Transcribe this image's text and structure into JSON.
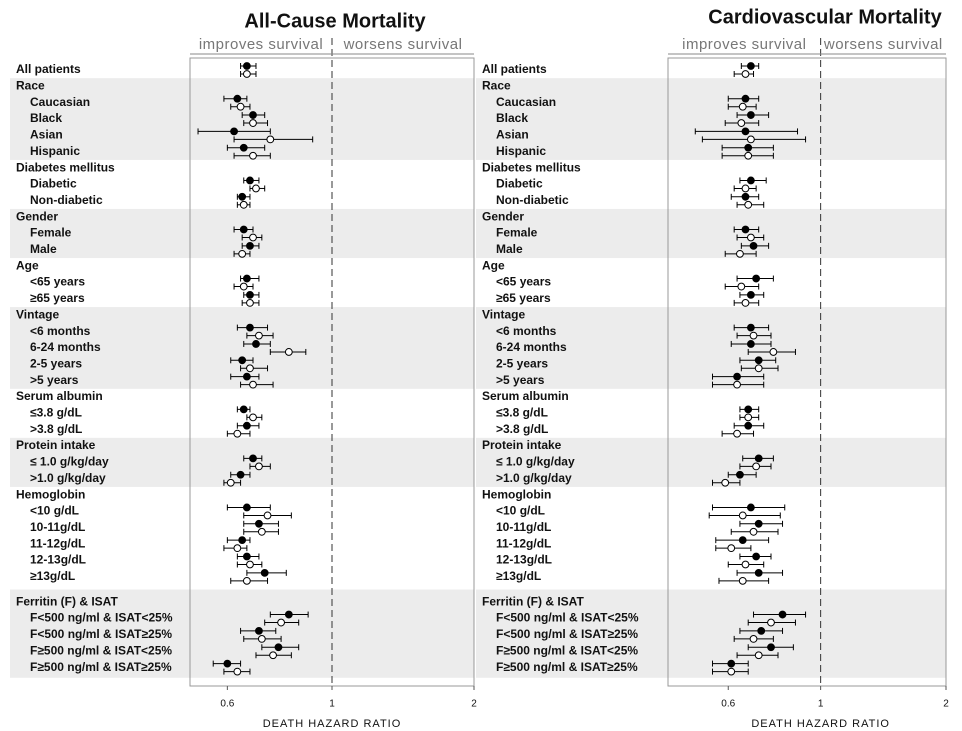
{
  "chart_data": [
    {
      "type": "forest",
      "title": "All-Cause Mortality",
      "annotations": [
        "improves survival",
        "worsens survival"
      ],
      "x_label": "DEATH HAZARD RATIO",
      "xscale": "log",
      "xlim": [
        0.5,
        2
      ],
      "xticks": [
        0.6,
        1,
        2
      ],
      "refline": 1,
      "categories": [
        "All patients",
        "Race",
        "Caucasian",
        "Black",
        "Asian",
        "Hispanic",
        "Diabetes mellitus",
        "Diabetic",
        "Non-diabetic",
        "Gender",
        "Female",
        "Male",
        "Age",
        "<65 years",
        "≥65 years",
        "Vintage",
        "<6 months",
        "6-24 months",
        "2-5 years",
        ">5 years",
        "Serum albumin",
        "≤3.8 g/dL",
        ">3.8 g/dL",
        "Protein intake",
        "≤ 1.0 g/kg/day",
        ">1.0 g/kg/day",
        "Hemoglobin",
        "<10 g/dL",
        "10-11g/dL",
        "11-12g/dL",
        "12-13g/dL",
        "≥13g/dL",
        "Ferritin (F) & ISAT",
        "F<500 ng/ml & ISAT<25%",
        "F<500 ng/ml & ISAT≥25%",
        "F≥500 ng/ml & ISAT<25%",
        "F≥500 ng/ml & ISAT≥25%"
      ],
      "series": [
        {
          "marker": "filled",
          "color": "#000000",
          "values": [
            0.66,
            null,
            0.63,
            0.68,
            0.62,
            0.65,
            null,
            0.67,
            0.645,
            null,
            0.65,
            0.67,
            null,
            0.66,
            0.67,
            null,
            0.67,
            0.69,
            0.645,
            0.66,
            null,
            0.65,
            0.66,
            null,
            0.68,
            0.64,
            null,
            0.66,
            0.7,
            0.645,
            0.66,
            0.72,
            null,
            0.81,
            0.7,
            0.77,
            0.6
          ],
          "lower": [
            0.64,
            null,
            0.59,
            0.645,
            0.52,
            0.6,
            null,
            0.65,
            0.63,
            null,
            0.62,
            0.645,
            null,
            0.64,
            0.65,
            null,
            0.63,
            0.65,
            0.61,
            0.61,
            null,
            0.63,
            0.63,
            null,
            0.65,
            0.61,
            null,
            0.6,
            0.65,
            0.6,
            0.63,
            0.66,
            null,
            0.74,
            0.64,
            0.71,
            0.56
          ],
          "upper": [
            0.69,
            null,
            0.66,
            0.72,
            0.74,
            0.72,
            null,
            0.7,
            0.67,
            null,
            0.68,
            0.7,
            null,
            0.7,
            0.7,
            null,
            0.73,
            0.74,
            0.68,
            0.7,
            null,
            0.67,
            0.7,
            null,
            0.71,
            0.67,
            null,
            0.74,
            0.77,
            0.67,
            0.7,
            0.8,
            null,
            0.89,
            0.76,
            0.85,
            0.64
          ]
        },
        {
          "marker": "open",
          "color": "#000000",
          "values": [
            0.66,
            null,
            0.64,
            0.68,
            0.74,
            0.68,
            null,
            0.69,
            0.65,
            null,
            0.68,
            0.645,
            null,
            0.65,
            0.67,
            null,
            0.7,
            0.81,
            0.67,
            0.68,
            null,
            0.68,
            0.63,
            null,
            0.7,
            0.61,
            null,
            0.73,
            0.71,
            0.63,
            0.67,
            0.66,
            null,
            0.78,
            0.71,
            0.75,
            0.63
          ],
          "lower": [
            0.64,
            null,
            0.61,
            0.65,
            0.62,
            0.62,
            null,
            0.67,
            0.63,
            null,
            0.645,
            0.62,
            null,
            0.62,
            0.645,
            null,
            0.66,
            0.74,
            0.64,
            0.64,
            null,
            0.66,
            0.6,
            null,
            0.67,
            0.59,
            null,
            0.65,
            0.65,
            0.59,
            0.63,
            0.61,
            null,
            0.72,
            0.65,
            0.69,
            0.59
          ],
          "upper": [
            0.69,
            null,
            0.67,
            0.73,
            0.91,
            0.74,
            null,
            0.72,
            0.67,
            null,
            0.71,
            0.67,
            null,
            0.68,
            0.7,
            null,
            0.75,
            0.88,
            0.73,
            0.75,
            null,
            0.71,
            0.67,
            null,
            0.74,
            0.64,
            null,
            0.82,
            0.77,
            0.66,
            0.71,
            0.73,
            null,
            0.85,
            0.78,
            0.82,
            0.67
          ]
        }
      ]
    },
    {
      "type": "forest",
      "title": "Cardiovascular Mortality",
      "annotations": [
        "improves survival",
        "worsens survival"
      ],
      "x_label": "DEATH HAZARD RATIO",
      "xscale": "log",
      "xlim": [
        0.43,
        2
      ],
      "xticks": [
        0.6,
        1,
        2
      ],
      "refline": 1,
      "categories": [
        "All patients",
        "Race",
        "Caucasian",
        "Black",
        "Asian",
        "Hispanic",
        "Diabetes mellitus",
        "Diabetic",
        "Non-diabetic",
        "Gender",
        "Female",
        "Male",
        "Age",
        "<65 years",
        "≥65 years",
        "Vintage",
        "<6 months",
        "6-24 months",
        "2-5 years",
        ">5 years",
        "Serum albumin",
        "≤3.8 g/dL",
        ">3.8 g/dL",
        "Protein intake",
        "≤ 1.0 g/kg/day",
        ">1.0 g/kg/day",
        "Hemoglobin",
        "<10 g/dL",
        "10-11g/dL",
        "11-12g/dL",
        "12-13g/dL",
        "≥13g/dL",
        "Ferritin (F) & ISAT",
        "F<500 ng/ml & ISAT<25%",
        "F<500 ng/ml & ISAT≥25%",
        "F≥500 ng/ml & ISAT<25%",
        "F≥500 ng/ml & ISAT≥25%"
      ],
      "series": [
        {
          "marker": "filled",
          "color": "#000000",
          "values": [
            0.68,
            null,
            0.66,
            0.68,
            0.66,
            0.67,
            null,
            0.68,
            0.66,
            null,
            0.66,
            0.69,
            null,
            0.7,
            0.68,
            null,
            0.68,
            0.68,
            0.71,
            0.63,
            null,
            0.67,
            0.67,
            null,
            0.71,
            0.64,
            null,
            0.68,
            0.71,
            0.65,
            0.7,
            0.71,
            null,
            0.81,
            0.72,
            0.76,
            0.61
          ],
          "lower": [
            0.645,
            null,
            0.6,
            0.63,
            0.5,
            0.58,
            null,
            0.64,
            0.61,
            null,
            0.62,
            0.645,
            null,
            0.63,
            0.64,
            null,
            0.62,
            0.61,
            0.64,
            0.55,
            null,
            0.64,
            0.62,
            null,
            0.65,
            0.6,
            null,
            0.55,
            0.64,
            0.56,
            0.64,
            0.63,
            null,
            0.69,
            0.64,
            0.67,
            0.55
          ],
          "upper": [
            0.71,
            null,
            0.71,
            0.75,
            0.88,
            0.77,
            null,
            0.74,
            0.71,
            null,
            0.71,
            0.75,
            null,
            0.77,
            0.73,
            null,
            0.75,
            0.76,
            0.78,
            0.73,
            null,
            0.71,
            0.73,
            null,
            0.77,
            0.7,
            null,
            0.82,
            0.81,
            0.75,
            0.76,
            0.81,
            null,
            0.92,
            0.81,
            0.86,
            0.67
          ]
        },
        {
          "marker": "open",
          "color": "#000000",
          "values": [
            0.66,
            null,
            0.65,
            0.645,
            0.68,
            0.67,
            null,
            0.66,
            0.67,
            null,
            0.68,
            0.64,
            null,
            0.645,
            0.66,
            null,
            0.69,
            0.77,
            0.71,
            0.63,
            null,
            0.67,
            0.63,
            null,
            0.7,
            0.59,
            null,
            0.65,
            0.69,
            0.61,
            0.66,
            0.65,
            null,
            0.76,
            0.69,
            0.71,
            0.61
          ],
          "lower": [
            0.62,
            null,
            0.6,
            0.59,
            0.52,
            0.58,
            null,
            0.62,
            0.63,
            null,
            0.63,
            0.59,
            null,
            0.59,
            0.62,
            null,
            0.63,
            0.67,
            0.645,
            0.55,
            null,
            0.64,
            0.58,
            null,
            0.64,
            0.55,
            null,
            0.54,
            0.61,
            0.56,
            0.6,
            0.57,
            null,
            0.67,
            0.62,
            0.63,
            0.55
          ],
          "upper": [
            0.69,
            null,
            0.7,
            0.71,
            0.92,
            0.77,
            null,
            0.7,
            0.73,
            null,
            0.73,
            0.7,
            null,
            0.71,
            0.71,
            null,
            0.76,
            0.87,
            0.79,
            0.73,
            null,
            0.71,
            0.69,
            null,
            0.76,
            0.64,
            null,
            0.8,
            0.79,
            0.68,
            0.73,
            0.75,
            null,
            0.87,
            0.77,
            0.79,
            0.67
          ]
        }
      ]
    }
  ]
}
